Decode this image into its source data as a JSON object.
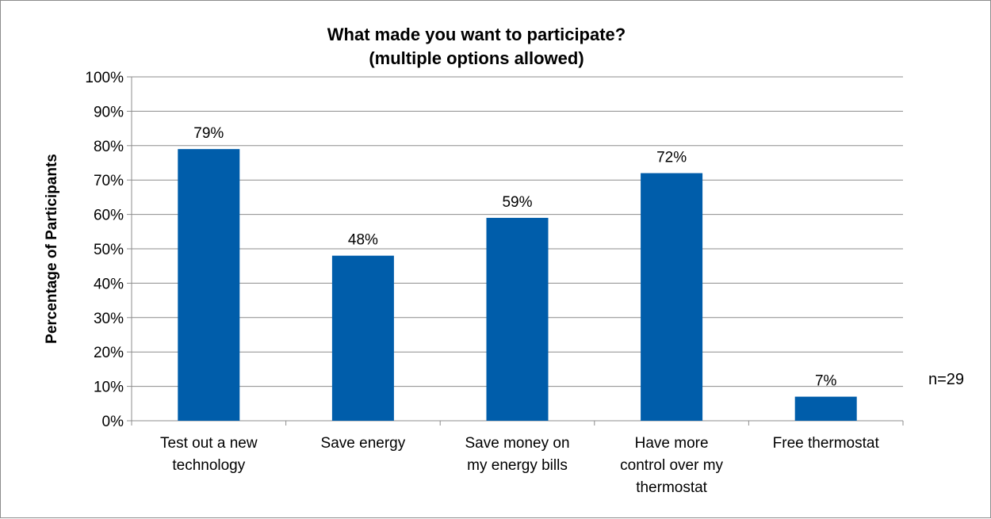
{
  "chart_data": {
    "type": "bar",
    "title": [
      "What made you want to participate?",
      "(multiple options allowed)"
    ],
    "ylabel": "Percentage of Participants",
    "xlabel": "",
    "categories": [
      [
        "Test out a new",
        "technology"
      ],
      [
        "Save energy"
      ],
      [
        "Save money on",
        "my energy bills"
      ],
      [
        "Have more",
        "control over my",
        "thermostat"
      ],
      [
        "Free thermostat"
      ]
    ],
    "values": [
      79,
      48,
      59,
      72,
      7
    ],
    "data_labels": [
      "79%",
      "48%",
      "59%",
      "72%",
      "7%"
    ],
    "ylim": [
      0,
      100
    ],
    "y_ticks": [
      "0%",
      "10%",
      "20%",
      "30%",
      "40%",
      "50%",
      "60%",
      "70%",
      "80%",
      "90%",
      "100%"
    ],
    "grid": true,
    "legend": "none",
    "bar_color": "#005DAA",
    "annotation": "n=29"
  }
}
